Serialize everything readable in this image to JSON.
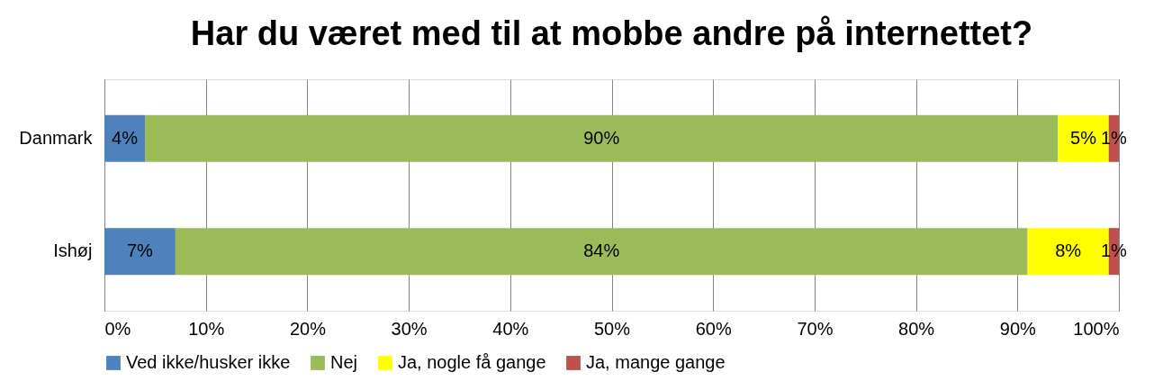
{
  "chart_data": {
    "type": "bar",
    "orientation": "horizontal",
    "stacked": true,
    "title": "Har du været med til at mobbe andre på internettet?",
    "categories": [
      "Danmark",
      "Ishøj"
    ],
    "series": [
      {
        "name": "Ved ikke/husker ikke",
        "color": "#4f81bd",
        "values": [
          4,
          7
        ],
        "value_labels": [
          "4%",
          "7%"
        ]
      },
      {
        "name": "Nej",
        "color": "#9bbb59",
        "values": [
          90,
          84
        ],
        "value_labels": [
          "90%",
          "84%"
        ]
      },
      {
        "name": "Ja, nogle få gange",
        "color": "#ffff00",
        "values": [
          5,
          8
        ],
        "value_labels": [
          "5%",
          "8%"
        ]
      },
      {
        "name": "Ja, mange gange",
        "color": "#c0504d",
        "values": [
          1,
          1
        ],
        "value_labels": [
          "1%",
          "1%"
        ]
      }
    ],
    "xlim": [
      0,
      100
    ],
    "xticks": [
      {
        "value": 0,
        "label": "0%"
      },
      {
        "value": 10,
        "label": "10%"
      },
      {
        "value": 20,
        "label": "20%"
      },
      {
        "value": 30,
        "label": "30%"
      },
      {
        "value": 40,
        "label": "40%"
      },
      {
        "value": 50,
        "label": "50%"
      },
      {
        "value": 60,
        "label": "60%"
      },
      {
        "value": 70,
        "label": "70%"
      },
      {
        "value": 80,
        "label": "80%"
      },
      {
        "value": 90,
        "label": "90%"
      },
      {
        "value": 100,
        "label": "100%"
      }
    ],
    "grid": "x",
    "legend": "bottom"
  }
}
